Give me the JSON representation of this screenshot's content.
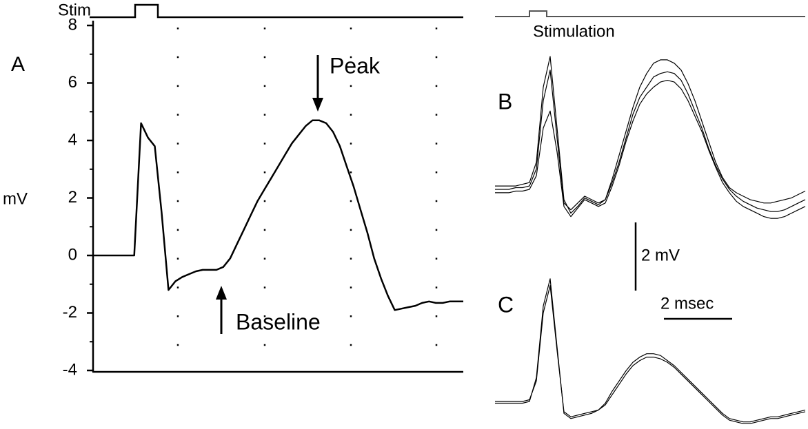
{
  "chart_data": [
    {
      "type": "line",
      "panel_label": "A",
      "stim_label": "Stim",
      "y_label": "mV",
      "color": "#000000",
      "grid": true,
      "ylim": [
        -4,
        8
      ],
      "yticks": [
        -4,
        -2,
        0,
        2,
        4,
        6,
        8
      ],
      "annotations": [
        "Peak",
        "Baseline"
      ],
      "values": [
        0,
        0,
        0,
        0,
        0,
        0,
        0,
        4.6,
        4.1,
        3.8,
        1.5,
        -1.2,
        -0.9,
        -0.75,
        -0.65,
        -0.55,
        -0.5,
        -0.5,
        -0.5,
        -0.4,
        -0.1,
        0.4,
        0.9,
        1.4,
        1.9,
        2.3,
        2.7,
        3.1,
        3.5,
        3.9,
        4.2,
        4.5,
        4.7,
        4.7,
        4.6,
        4.3,
        3.8,
        3.1,
        2.4,
        1.6,
        0.8,
        -0.1,
        -0.8,
        -1.4,
        -1.9,
        -1.85,
        -1.8,
        -1.75,
        -1.65,
        -1.6,
        -1.65,
        -1.65,
        -1.6,
        -1.6,
        -1.6
      ]
    },
    {
      "type": "line",
      "panel_label": "B",
      "stim_label": "Stimulation",
      "series": [
        {
          "color": "#000000",
          "values": [
            0,
            0,
            0,
            0.05,
            0.05,
            0.1,
            0.6,
            2.6,
            3.5,
            1.5,
            -0.4,
            -0.6,
            -0.4,
            -0.2,
            -0.3,
            -0.4,
            -0.3,
            0.2,
            0.8,
            1.5,
            2.2,
            2.7,
            3.0,
            3.3,
            3.4,
            3.45,
            3.4,
            3.2,
            2.8,
            2.3,
            1.8,
            1.2,
            0.7,
            0.3,
            0,
            -0.2,
            -0.35,
            -0.45,
            -0.55,
            -0.6,
            -0.65,
            -0.65,
            -0.6,
            -0.5,
            -0.4,
            -0.3
          ]
        },
        {
          "color": "#000000",
          "values": [
            0.1,
            0.1,
            0.1,
            0.1,
            0.15,
            0.2,
            0.8,
            3.0,
            3.9,
            1.8,
            -0.3,
            -0.7,
            -0.5,
            -0.25,
            -0.35,
            -0.45,
            -0.3,
            0.3,
            1.0,
            1.7,
            2.4,
            3.0,
            3.4,
            3.7,
            3.8,
            3.8,
            3.7,
            3.5,
            3.1,
            2.6,
            2.0,
            1.4,
            0.8,
            0.35,
            0.05,
            -0.1,
            -0.2,
            -0.3,
            -0.35,
            -0.4,
            -0.4,
            -0.35,
            -0.3,
            -0.25,
            -0.15,
            -0.05
          ]
        },
        {
          "color": "#000000",
          "values": [
            -0.1,
            -0.1,
            -0.1,
            -0.05,
            -0.05,
            0,
            0.4,
            1.8,
            2.3,
            1.1,
            -0.5,
            -0.8,
            -0.55,
            -0.3,
            -0.4,
            -0.5,
            -0.4,
            0.1,
            0.7,
            1.4,
            2.0,
            2.5,
            2.8,
            3.0,
            3.15,
            3.2,
            3.15,
            2.95,
            2.6,
            2.15,
            1.7,
            1.15,
            0.65,
            0.2,
            -0.1,
            -0.35,
            -0.5,
            -0.6,
            -0.7,
            -0.8,
            -0.85,
            -0.85,
            -0.8,
            -0.7,
            -0.6,
            -0.5
          ]
        }
      ]
    },
    {
      "type": "line",
      "panel_label": "C",
      "series": [
        {
          "color": "#000000",
          "values": [
            0,
            0,
            0,
            0,
            0,
            0.05,
            0.6,
            2.6,
            3.4,
            1.5,
            -0.3,
            -0.45,
            -0.4,
            -0.35,
            -0.3,
            -0.25,
            -0.1,
            0.2,
            0.5,
            0.8,
            1.05,
            1.2,
            1.3,
            1.3,
            1.25,
            1.15,
            1.0,
            0.8,
            0.6,
            0.4,
            0.2,
            0,
            -0.2,
            -0.4,
            -0.55,
            -0.6,
            -0.65,
            -0.65,
            -0.6,
            -0.55,
            -0.5,
            -0.5,
            -0.45,
            -0.4,
            -0.35,
            -0.3
          ]
        },
        {
          "color": "#000000",
          "values": [
            -0.05,
            -0.05,
            -0.05,
            -0.05,
            -0.05,
            0,
            0.7,
            2.8,
            3.6,
            1.6,
            -0.35,
            -0.5,
            -0.45,
            -0.4,
            -0.35,
            -0.25,
            -0.05,
            0.3,
            0.6,
            0.9,
            1.15,
            1.3,
            1.4,
            1.4,
            1.35,
            1.2,
            1.05,
            0.85,
            0.65,
            0.45,
            0.25,
            0.05,
            -0.15,
            -0.35,
            -0.5,
            -0.55,
            -0.6,
            -0.6,
            -0.55,
            -0.5,
            -0.45,
            -0.45,
            -0.4,
            -0.35,
            -0.3,
            -0.25
          ]
        }
      ]
    }
  ],
  "scale_bar": {
    "voltage": "2 mV",
    "time": "2 msec"
  }
}
